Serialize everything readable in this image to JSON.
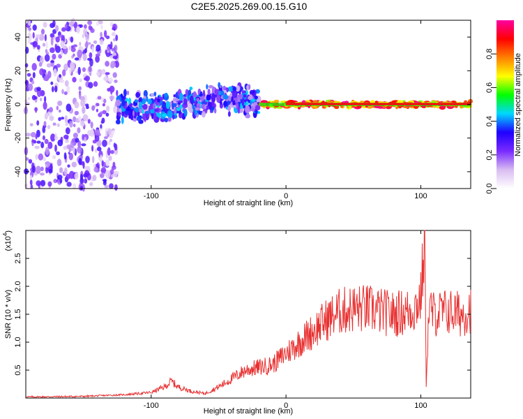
{
  "title": "C2E5.2025.269.00.15.G10",
  "chart_data": [
    {
      "type": "heatmap",
      "xlabel": "Height of straight line (km)",
      "ylabel": "Frequency (Hz)",
      "xlim": [
        -193,
        137
      ],
      "ylim": [
        -50,
        50
      ],
      "xticks": [
        -100,
        0,
        100
      ],
      "yticks": [
        -40,
        -20,
        0,
        20,
        40
      ],
      "xtick_labels": [
        "-100",
        "0",
        "100"
      ],
      "ytick_labels": [
        "-40",
        "-20",
        "0",
        "20",
        "40"
      ],
      "description_bands": [
        {
          "x_range": [
            -193,
            -125
          ],
          "freq_spread": 50,
          "amplitude_range": [
            0.05,
            0.3
          ]
        },
        {
          "x_range": [
            -125,
            -20
          ],
          "freq_center": 0,
          "freq_spread": 10,
          "amplitude_range": [
            0.1,
            0.45
          ]
        },
        {
          "x_range": [
            -20,
            137
          ],
          "freq_center": 0,
          "freq_spread": 2,
          "amplitude_range": [
            0.6,
            1.0
          ]
        }
      ]
    },
    {
      "type": "colorbar",
      "label": "Normalized spectral amplitude",
      "range": [
        0.0,
        1.0
      ],
      "ticks": [
        0.0,
        0.2,
        0.4,
        0.6,
        0.8
      ],
      "tick_labels": [
        "0.0",
        "0.2",
        "0.4",
        "0.6",
        "0.8"
      ],
      "colors": [
        "#ffffff",
        "#d9bdf2",
        "#7a2bff",
        "#1f00ff",
        "#00d7ff",
        "#00ff00",
        "#ffff00",
        "#ff8000",
        "#ff0000",
        "#ff00a0"
      ]
    },
    {
      "type": "line",
      "xlabel": "Height of straight line (km)",
      "ylabel": "SNR (10 * v/v)",
      "scale_label": "(x10",
      "scale_exp": "4",
      "scale_close": ")",
      "xlim": [
        -193,
        137
      ],
      "ylim": [
        0,
        3.0
      ],
      "xticks": [
        -100,
        0,
        100
      ],
      "yticks": [
        0.5,
        1.0,
        1.5,
        2.0,
        2.5
      ],
      "xtick_labels": [
        "-100",
        "0",
        "100"
      ],
      "ytick_labels": [
        "0.5",
        "1.0",
        "1.5",
        "2.0",
        "2.5"
      ],
      "color": "#e83030",
      "envelope": {
        "x": [
          -193,
          -150,
          -120,
          -100,
          -90,
          -85,
          -80,
          -70,
          -60,
          -50,
          -40,
          -30,
          -20,
          -10,
          0,
          10,
          20,
          30,
          40,
          50,
          60,
          70,
          80,
          90,
          95,
          100,
          103,
          104,
          106,
          110,
          120,
          130,
          137
        ],
        "y": [
          0.02,
          0.03,
          0.06,
          0.1,
          0.2,
          0.3,
          0.2,
          0.12,
          0.08,
          0.2,
          0.35,
          0.5,
          0.55,
          0.6,
          0.8,
          1.0,
          1.2,
          1.4,
          1.55,
          1.6,
          1.6,
          1.55,
          1.5,
          1.55,
          1.6,
          1.8,
          2.9,
          0.2,
          1.6,
          1.5,
          1.55,
          1.5,
          1.6
        ]
      }
    }
  ]
}
